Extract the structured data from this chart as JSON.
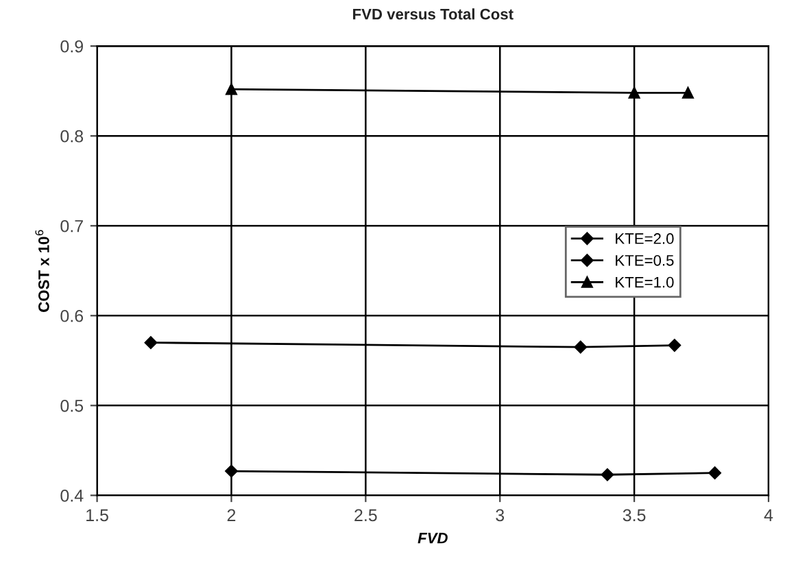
{
  "chart_data": {
    "type": "line",
    "title": "FVD versus Total Cost",
    "xlabel": "FVD",
    "ylabel": "COST x 10$^{6}$",
    "xlim": [
      1.5,
      4
    ],
    "xticks": [
      1.5,
      2,
      2.5,
      3,
      3.5,
      4
    ],
    "ylim": [
      0.4,
      0.9
    ],
    "yticks": [
      0.4,
      0.5,
      0.6,
      0.7,
      0.8,
      0.9
    ],
    "grid": true,
    "legend": "right",
    "line_style": "solid",
    "series": [
      {
        "name": "KTE=2.0",
        "color": "#000000",
        "marker": "diamond",
        "x": [
          2.0,
          3.4,
          3.8
        ],
        "values": [
          0.427,
          0.423,
          0.425
        ]
      },
      {
        "name": "KTE=0.5",
        "color": "#000000",
        "marker": "diamond",
        "x": [
          1.7,
          3.3,
          3.65
        ],
        "values": [
          0.57,
          0.565,
          0.567
        ]
      },
      {
        "name": "KTE=1.0",
        "color": "#000000",
        "marker": "triangle",
        "x": [
          2.0,
          3.5,
          3.7
        ],
        "values": [
          0.852,
          0.848,
          0.848
        ]
      }
    ]
  }
}
